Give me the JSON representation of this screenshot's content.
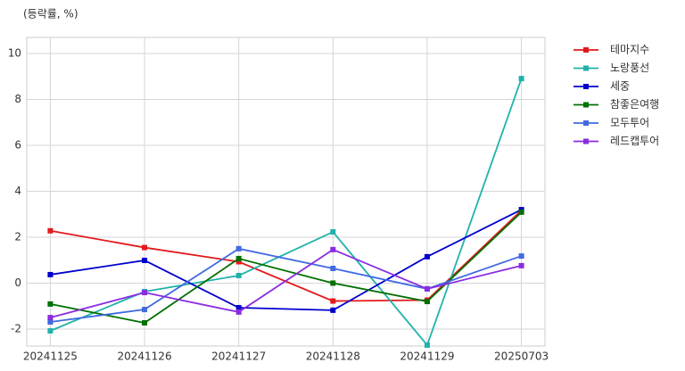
{
  "chart_data": {
    "type": "line",
    "y_label": "(등락률, %)",
    "categories": [
      "20241125",
      "20241126",
      "20241127",
      "20241128",
      "20241129",
      "20250703"
    ],
    "ylim": [
      -2.74,
      10.7
    ],
    "yticks": [
      -2,
      0,
      2,
      4,
      6,
      8,
      10
    ],
    "grid": true,
    "legend": "outside-right",
    "series": [
      {
        "name": "테마지수",
        "color": "#e31a1c",
        "values": [
          2.28,
          1.55,
          0.93,
          -0.78,
          -0.74,
          3.17
        ]
      },
      {
        "name": "노랑풍선",
        "color": "#20b2aa",
        "values": [
          -2.08,
          -0.37,
          0.33,
          2.23,
          -2.7,
          8.91
        ]
      },
      {
        "name": "세중",
        "color": "#0000cd",
        "values": [
          0.37,
          0.99,
          -1.07,
          -1.18,
          1.15,
          3.2
        ]
      },
      {
        "name": "참좋은여행",
        "color": "#007000",
        "values": [
          -0.91,
          -1.73,
          1.07,
          0,
          -0.8,
          3.09
        ]
      },
      {
        "name": "모두투어",
        "color": "#4169e1",
        "values": [
          -1.69,
          -1.15,
          1.5,
          0.64,
          -0.25,
          1.18
        ]
      },
      {
        "name": "레드캡투어",
        "color": "#8a2be2",
        "values": [
          -1.5,
          -0.41,
          -1.26,
          1.46,
          -0.25,
          0.76
        ]
      }
    ]
  }
}
